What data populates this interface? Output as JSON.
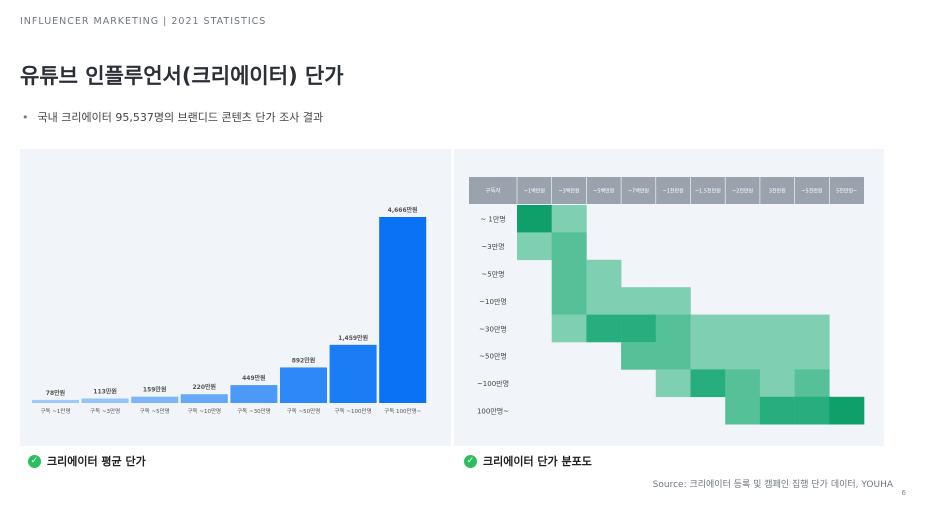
{
  "header": {
    "tag": "INFLUENCER MARKETING  |  2021 STATISTICS"
  },
  "title": "유튜브 인플루언서(크리에이터) 단가",
  "bullet": "국내 크리에이터 95,537명의 브랜디드 콘텐츠 단가 조사 결과",
  "captions": {
    "left": "크리에이터 평균 단가",
    "right": "크리에이터 단가 분포도"
  },
  "source": "Source: 크리에이터 등록 및 캠페인 집행 단가 데이터,  YOUHA",
  "page_number": "6",
  "chart_data": [
    {
      "type": "bar",
      "categories": [
        "구독 ~1만명",
        "구독 ~3만명",
        "구독 ~5만명",
        "구독 ~10만명",
        "구독 ~30만명",
        "구독 ~50만명",
        "구독 ~100만명",
        "구독 100만명~"
      ],
      "values": [
        78,
        113,
        159,
        220,
        449,
        892,
        1459,
        4666
      ],
      "data_labels": [
        "78만원",
        "113만원",
        "159만원",
        "220만원",
        "449만원",
        "892만원",
        "1,459만원",
        "4,666만원"
      ],
      "colors": [
        "#9cc8fb",
        "#93c3fb",
        "#7cb6fa",
        "#64a8f9",
        "#4d99f8",
        "#2e88f7",
        "#1b7df6",
        "#0a72f5"
      ],
      "title": "",
      "xlabel": "",
      "ylabel": "",
      "ylim": [
        0,
        5000
      ]
    },
    {
      "type": "heatmap",
      "corner_label": "구독자",
      "x_labels": [
        "~1백만원",
        "~3백만원",
        "~5백만원",
        "~7백만원",
        "~1천만원",
        "~1.5천만원",
        "~2천만원",
        "3천만원",
        "~5천만원",
        "5천만원~"
      ],
      "y_labels": [
        "~ 1만명",
        "~3만명",
        "~5만명",
        "~10만명",
        "~30만명",
        "~50만명",
        "~100만명",
        "100만명~"
      ],
      "matrix": [
        [
          4,
          1,
          0,
          0,
          0,
          0,
          0,
          0,
          0,
          0
        ],
        [
          1,
          2,
          0,
          0,
          0,
          0,
          0,
          0,
          0,
          0
        ],
        [
          0,
          2,
          1,
          0,
          0,
          0,
          0,
          0,
          0,
          0
        ],
        [
          0,
          2,
          1,
          1,
          1,
          0,
          0,
          0,
          0,
          0
        ],
        [
          0,
          1,
          3,
          3,
          2,
          1,
          1,
          1,
          1,
          0
        ],
        [
          0,
          0,
          0,
          2,
          2,
          1,
          1,
          1,
          1,
          0
        ],
        [
          0,
          0,
          0,
          0,
          1,
          3,
          2,
          1,
          2,
          0
        ],
        [
          0,
          0,
          0,
          0,
          0,
          0,
          2,
          3,
          3,
          4
        ]
      ],
      "palette": [
        "#f1f4f8",
        "#7fcfb2",
        "#56c098",
        "#28ae7e",
        "#0f9f6b"
      ],
      "header_color": "#9aa3ad"
    }
  ]
}
